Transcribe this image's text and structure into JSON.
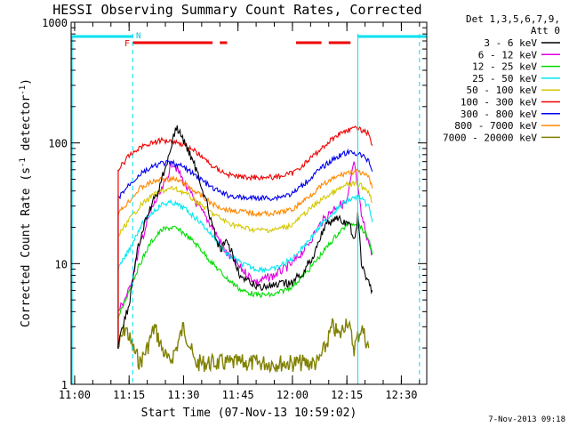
{
  "chart_data": {
    "type": "line",
    "title": "HESSI Observing Summary Count Rates, Corrected",
    "xlabel": "Start Time (07-Nov-13 10:59:02)",
    "ylabel": "Corrected Count Rate (s^-1 detector^-1)",
    "ylabel_parts": {
      "main": "Corrected Count Rate (s",
      "sup1": "-1",
      "mid": " detector",
      "sup2": "-1",
      "end": ")"
    },
    "y_scale": "log",
    "ylim": [
      1,
      1000
    ],
    "xlim": [
      "10:59:02",
      "12:37:00"
    ],
    "x_tick_labels": [
      "11:00",
      "11:15",
      "11:30",
      "11:45",
      "12:00",
      "12:15",
      "12:30"
    ],
    "y_tick_labels": [
      "1",
      "10",
      "100",
      "1000"
    ],
    "legend": {
      "placement": "top-right outside",
      "header": [
        "Det 1,3,5,6,7,9,",
        "Att 0"
      ],
      "entries": [
        {
          "label": "3 - 6 keV",
          "color": "#000000"
        },
        {
          "label": "6 - 12 keV",
          "color": "#e000e0"
        },
        {
          "label": "12 - 25 keV",
          "color": "#00dd00"
        },
        {
          "label": "25 - 50 keV",
          "color": "#00e8f0"
        },
        {
          "label": "50 - 100 keV",
          "color": "#d4c800"
        },
        {
          "label": "100 - 300 keV",
          "color": "#ee0000"
        },
        {
          "label": "300 - 800 keV",
          "color": "#0000ee"
        },
        {
          "label": "800 - 7000 keV",
          "color": "#ff8800"
        },
        {
          "label": "7000 - 20000 keV",
          "color": "#808000"
        }
      ]
    },
    "flag_labels": {
      "flare": "F",
      "night": "N"
    },
    "night_intervals": [
      [
        "10:59:02",
        "11:16:00"
      ],
      [
        "12:18:00",
        "12:37:00"
      ]
    ],
    "flare_flag_intervals": [
      [
        "11:16:00",
        "11:38:00"
      ],
      [
        "11:40:00",
        "11:42:00"
      ],
      [
        "12:01:00",
        "12:08:00"
      ],
      [
        "12:10:00",
        "12:16:00"
      ]
    ],
    "vertical_markers": [
      "11:16:00",
      "12:18:00",
      "12:35:00"
    ],
    "timestamp": "7-Nov-2013 09:18",
    "series": [
      {
        "name": "3 - 6 keV",
        "color": "#000000",
        "x": [
          "11:12",
          "11:13",
          "11:15",
          "11:17",
          "11:20",
          "11:23",
          "11:26",
          "11:28",
          "11:30",
          "11:32",
          "11:34",
          "11:36",
          "11:38",
          "11:40",
          "11:42",
          "11:44",
          "11:46",
          "11:50",
          "11:55",
          "12:00",
          "12:03",
          "12:06",
          "12:08",
          "12:10",
          "12:12",
          "12:14",
          "12:16",
          "12:17",
          "12:18",
          "12:19",
          "12:20",
          "12:21",
          "12:22"
        ],
        "y": [
          2.1,
          3,
          4.5,
          12,
          25,
          40,
          80,
          135,
          105,
          78,
          55,
          35,
          20,
          13,
          15,
          11,
          7.5,
          6.5,
          6.5,
          7,
          8.5,
          12,
          18,
          22,
          24,
          22,
          20,
          15,
          25,
          10,
          8,
          7,
          6
        ]
      },
      {
        "name": "6 - 12 keV",
        "color": "#e000e0",
        "x": [
          "11:12",
          "11:15",
          "11:18",
          "11:21",
          "11:24",
          "11:27",
          "11:29",
          "11:31",
          "11:34",
          "11:38",
          "11:42",
          "11:46",
          "11:50",
          "11:55",
          "12:00",
          "12:04",
          "12:08",
          "12:12",
          "12:15",
          "12:17",
          "12:19",
          "12:21",
          "12:22"
        ],
        "y": [
          4,
          6,
          14,
          28,
          40,
          70,
          55,
          42,
          30,
          20,
          12,
          9,
          7,
          8,
          10,
          14,
          22,
          30,
          32,
          70,
          25,
          15,
          12
        ]
      },
      {
        "name": "12 - 25 keV",
        "color": "#00dd00",
        "x": [
          "11:12",
          "11:15",
          "11:18",
          "11:21",
          "11:24",
          "11:27",
          "11:30",
          "11:34",
          "11:38",
          "11:42",
          "11:46",
          "11:50",
          "11:55",
          "12:00",
          "12:04",
          "12:08",
          "12:12",
          "12:15",
          "12:18",
          "12:21",
          "12:22"
        ],
        "y": [
          3.5,
          6,
          10,
          15,
          19,
          20,
          18,
          14,
          10,
          7.5,
          6,
          5.5,
          5.5,
          6.5,
          8.5,
          12,
          17,
          21,
          22,
          16,
          12
        ]
      },
      {
        "name": "25 - 50 keV",
        "color": "#00e8f0",
        "x": [
          "11:12",
          "11:15",
          "11:18",
          "11:21",
          "11:24",
          "11:27",
          "11:30",
          "11:34",
          "11:38",
          "11:42",
          "11:46",
          "11:50",
          "11:55",
          "12:00",
          "12:04",
          "12:08",
          "12:12",
          "12:15",
          "12:18",
          "12:21",
          "12:22"
        ],
        "y": [
          9,
          13,
          20,
          26,
          31,
          32,
          29,
          23,
          17,
          12,
          10,
          9,
          9,
          11,
          15,
          21,
          28,
          33,
          36,
          30,
          22
        ]
      },
      {
        "name": "50 - 100 keV",
        "color": "#d4c800",
        "x": [
          "11:12",
          "11:15",
          "11:18",
          "11:21",
          "11:24",
          "11:27",
          "11:30",
          "11:34",
          "11:38",
          "11:42",
          "11:46",
          "11:50",
          "11:55",
          "12:00",
          "12:04",
          "12:08",
          "12:12",
          "12:15",
          "12:18",
          "12:21",
          "12:22"
        ],
        "y": [
          17,
          23,
          30,
          36,
          40,
          42,
          39,
          32,
          26,
          22,
          20,
          19,
          19,
          21,
          27,
          34,
          40,
          45,
          46,
          40,
          32
        ]
      },
      {
        "name": "100 - 300 keV",
        "color": "#ee0000",
        "x": [
          "11:12",
          "11:15",
          "11:18",
          "11:21",
          "11:24",
          "11:27",
          "11:30",
          "11:34",
          "11:38",
          "11:42",
          "11:46",
          "11:50",
          "11:55",
          "12:00",
          "12:04",
          "12:08",
          "12:12",
          "12:15",
          "12:18",
          "12:21",
          "12:22"
        ],
        "y": [
          60,
          78,
          92,
          100,
          105,
          104,
          97,
          82,
          64,
          55,
          52,
          52,
          52,
          56,
          70,
          90,
          115,
          128,
          132,
          120,
          95
        ]
      },
      {
        "name": "300 - 800 keV",
        "color": "#0000ee",
        "x": [
          "11:12",
          "11:15",
          "11:18",
          "11:21",
          "11:24",
          "11:27",
          "11:30",
          "11:34",
          "11:38",
          "11:42",
          "11:46",
          "11:50",
          "11:55",
          "12:00",
          "12:04",
          "12:08",
          "12:12",
          "12:15",
          "12:18",
          "12:21",
          "12:22"
        ],
        "y": [
          35,
          45,
          55,
          62,
          68,
          68,
          63,
          52,
          42,
          37,
          35,
          35,
          35,
          38,
          48,
          62,
          76,
          83,
          82,
          72,
          58
        ]
      },
      {
        "name": "800 - 7000 keV",
        "color": "#ff8800",
        "x": [
          "11:12",
          "11:15",
          "11:18",
          "11:21",
          "11:24",
          "11:27",
          "11:30",
          "11:34",
          "11:38",
          "11:42",
          "11:46",
          "11:50",
          "11:55",
          "12:00",
          "12:04",
          "12:08",
          "12:12",
          "12:15",
          "12:18",
          "12:21",
          "12:22"
        ],
        "y": [
          26,
          33,
          42,
          47,
          50,
          50,
          47,
          38,
          31,
          28,
          27,
          26,
          26,
          28,
          35,
          44,
          52,
          57,
          58,
          52,
          42
        ]
      },
      {
        "name": "7000 - 20000 keV",
        "color": "#808000",
        "x": [
          "11:12",
          "11:14",
          "11:16",
          "11:18",
          "11:20",
          "11:22",
          "11:24",
          "11:26",
          "11:28",
          "11:30",
          "11:32",
          "11:33",
          "12:07",
          "12:09",
          "12:11",
          "12:13",
          "12:15",
          "12:17",
          "12:19",
          "12:21"
        ],
        "y": [
          2,
          3,
          2,
          1.5,
          2,
          3,
          2,
          1.5,
          2,
          3,
          2,
          1.5,
          1.5,
          2,
          3,
          2.5,
          3.5,
          2,
          3,
          2
        ]
      }
    ]
  }
}
